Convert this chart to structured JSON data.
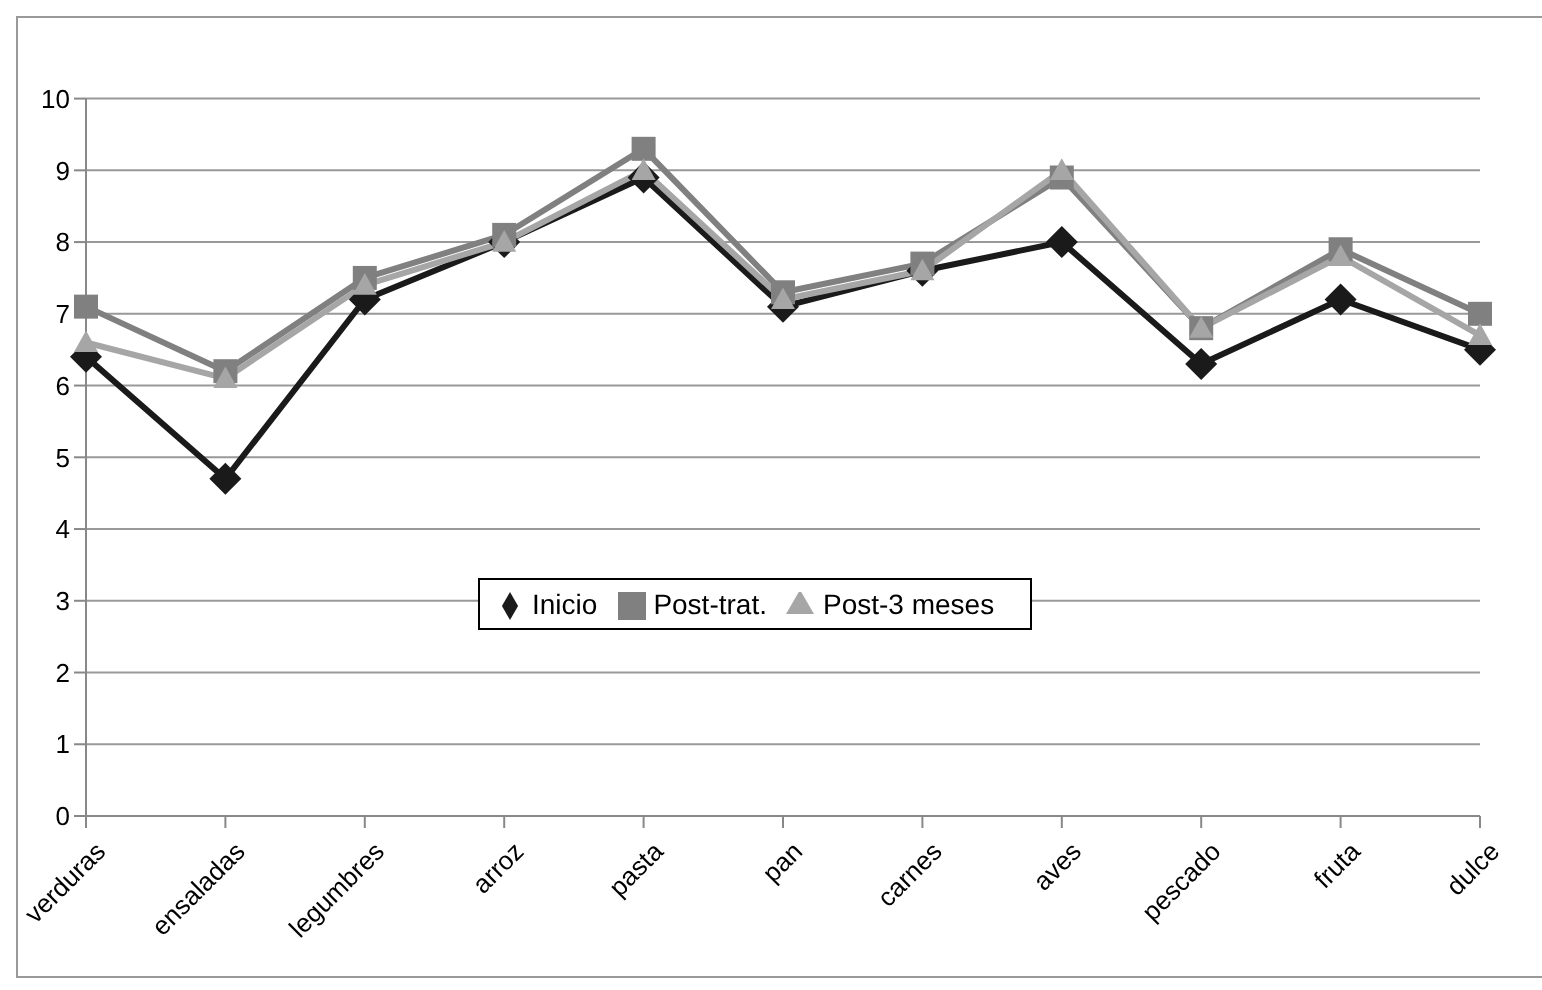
{
  "chart_data": {
    "type": "line",
    "categories": [
      "verduras",
      "ensaladas",
      "legumbres",
      "arroz",
      "pasta",
      "pan",
      "carnes",
      "aves",
      "pescado",
      "fruta",
      "dulce"
    ],
    "series": [
      {
        "name": "Inicio",
        "color": "#1a1a1a",
        "marker": "diamond",
        "values": [
          6.4,
          4.7,
          7.2,
          8.0,
          8.9,
          7.1,
          7.6,
          8.0,
          6.3,
          7.2,
          6.5
        ]
      },
      {
        "name": "Post-trat.",
        "color": "#808080",
        "marker": "square",
        "values": [
          7.1,
          6.2,
          7.5,
          8.1,
          9.3,
          7.3,
          7.7,
          8.9,
          6.8,
          7.9,
          7.0
        ]
      },
      {
        "name": "Post-3 meses",
        "color": "#a6a6a6",
        "marker": "triangle",
        "values": [
          6.6,
          6.1,
          7.4,
          8.0,
          9.0,
          7.2,
          7.6,
          9.0,
          6.8,
          7.8,
          6.7
        ]
      }
    ],
    "ylim": [
      0,
      10
    ],
    "yticks": [
      0,
      1,
      2,
      3,
      4,
      5,
      6,
      7,
      8,
      9,
      10
    ],
    "grid": "y",
    "legend": "center",
    "line_style": "solid"
  }
}
